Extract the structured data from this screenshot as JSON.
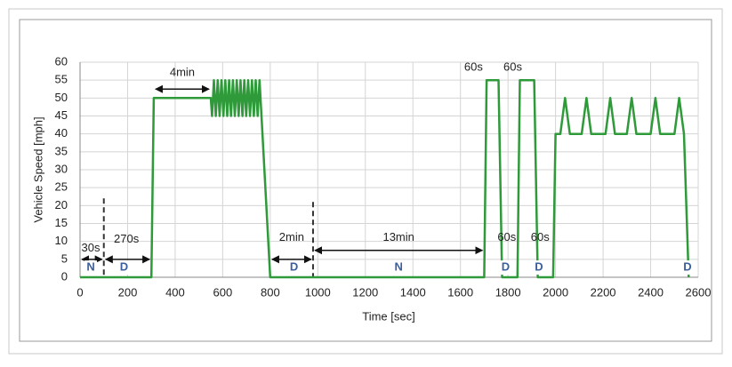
{
  "chart_data": {
    "type": "line",
    "xlabel": "Time [sec]",
    "ylabel": "Vehicle Speed [mph]",
    "x": [
      0,
      300,
      310,
      550,
      555,
      563,
      571,
      579,
      587,
      595,
      603,
      611,
      619,
      627,
      635,
      643,
      651,
      659,
      667,
      675,
      683,
      691,
      699,
      707,
      715,
      723,
      731,
      739,
      747,
      755,
      763,
      800,
      1700,
      1710,
      1760,
      1775,
      1840,
      1850,
      1910,
      1925,
      1990,
      2000,
      2020,
      2040,
      2060,
      2110,
      2130,
      2150,
      2210,
      2230,
      2250,
      2300,
      2320,
      2340,
      2400,
      2420,
      2440,
      2500,
      2520,
      2540,
      2560
    ],
    "values": [
      0,
      0,
      50,
      50,
      45,
      55,
      45,
      55,
      45,
      55,
      45,
      55,
      45,
      55,
      45,
      55,
      45,
      55,
      45,
      55,
      45,
      55,
      45,
      55,
      45,
      55,
      45,
      55,
      45,
      55,
      45,
      0,
      0,
      55,
      55,
      0,
      0,
      55,
      55,
      0,
      0,
      40,
      40,
      50,
      40,
      40,
      50,
      40,
      40,
      50,
      40,
      40,
      50,
      40,
      40,
      50,
      40,
      40,
      50,
      40,
      0
    ],
    "color": "#2e9a3a",
    "xlim": [
      0,
      2600
    ],
    "xticks": [
      0,
      200,
      400,
      600,
      800,
      1000,
      1200,
      1400,
      1600,
      1800,
      2000,
      2200,
      2400,
      2600
    ],
    "ylim": [
      0,
      60
    ],
    "yticks": [
      0,
      5,
      10,
      15,
      20,
      25,
      30,
      35,
      40,
      45,
      50,
      55,
      60
    ],
    "grid": true,
    "annotations": [
      "30s",
      "270s",
      "4min",
      "2min",
      "13min",
      "60s",
      "60s",
      "60s",
      "60s",
      "N",
      "D",
      "D",
      "N",
      "D",
      "D",
      "D"
    ]
  }
}
